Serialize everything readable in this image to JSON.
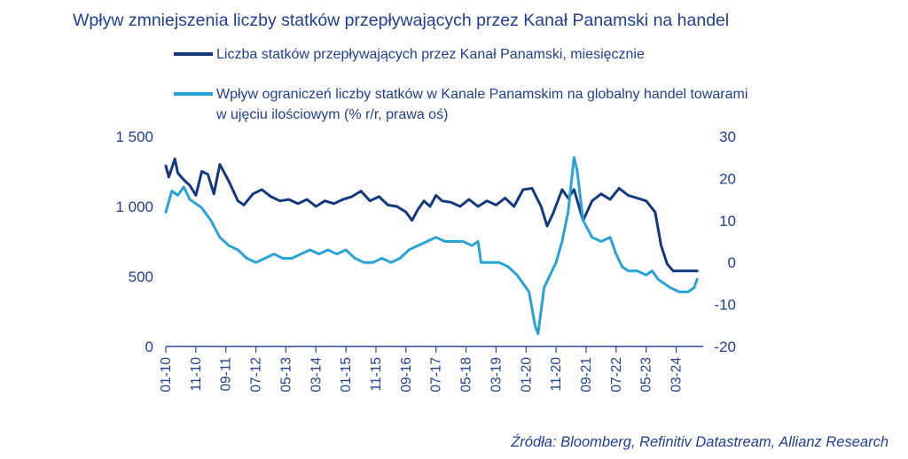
{
  "chart_data": {
    "type": "line",
    "title": "Wpływ zmniejszenia liczby statków przepływających przez Kanał Panamski na handel",
    "source": "Źródła: Bloomberg, Refinitiv Datastream, Allianz Research",
    "x_tick_labels": [
      "01-10",
      "11-10",
      "09-11",
      "07-12",
      "05-13",
      "03-14",
      "01-15",
      "11-15",
      "09-16",
      "07-17",
      "05-18",
      "03-19",
      "01-20",
      "11-20",
      "09-21",
      "07-22",
      "05-23",
      "03-24"
    ],
    "left_axis": {
      "ylim": [
        0,
        1500
      ],
      "ticks": [
        0,
        500,
        1000,
        1500
      ],
      "tick_labels": [
        "0",
        "500",
        "1 000",
        "1 500"
      ]
    },
    "right_axis": {
      "ylim": [
        -20,
        30
      ],
      "ticks": [
        -20,
        -10,
        0,
        10,
        20,
        30
      ],
      "tick_labels": [
        "-20",
        "-10",
        "0",
        "10",
        "20",
        "30"
      ]
    },
    "colors": {
      "ships": "#14387f",
      "trade": "#29a3d5",
      "axis": "#2a4a8f",
      "text": "#1f3f8f"
    },
    "series": [
      {
        "name": "Liczba statków przepływających przez Kanał Panamski, miesięcznie",
        "axis": "left",
        "color": "#14387f",
        "points": [
          [
            "2010-01",
            1290
          ],
          [
            "2010-02",
            1210
          ],
          [
            "2010-04",
            1340
          ],
          [
            "2010-05",
            1240
          ],
          [
            "2010-07",
            1190
          ],
          [
            "2010-09",
            1150
          ],
          [
            "2010-11",
            1080
          ],
          [
            "2011-01",
            1250
          ],
          [
            "2011-03",
            1230
          ],
          [
            "2011-05",
            1090
          ],
          [
            "2011-07",
            1300
          ],
          [
            "2011-10",
            1180
          ],
          [
            "2012-01",
            1040
          ],
          [
            "2012-03",
            1010
          ],
          [
            "2012-06",
            1090
          ],
          [
            "2012-09",
            1120
          ],
          [
            "2012-12",
            1070
          ],
          [
            "2013-03",
            1040
          ],
          [
            "2013-06",
            1050
          ],
          [
            "2013-09",
            1020
          ],
          [
            "2013-12",
            1050
          ],
          [
            "2014-03",
            1000
          ],
          [
            "2014-06",
            1040
          ],
          [
            "2014-09",
            1020
          ],
          [
            "2014-12",
            1050
          ],
          [
            "2015-03",
            1070
          ],
          [
            "2015-06",
            1110
          ],
          [
            "2015-09",
            1040
          ],
          [
            "2015-12",
            1070
          ],
          [
            "2016-03",
            1010
          ],
          [
            "2016-06",
            1000
          ],
          [
            "2016-09",
            960
          ],
          [
            "2016-11",
            900
          ],
          [
            "2017-01",
            980
          ],
          [
            "2017-03",
            1040
          ],
          [
            "2017-05",
            1000
          ],
          [
            "2017-07",
            1080
          ],
          [
            "2017-09",
            1040
          ],
          [
            "2017-12",
            1030
          ],
          [
            "2018-03",
            1000
          ],
          [
            "2018-06",
            1050
          ],
          [
            "2018-09",
            1000
          ],
          [
            "2018-12",
            1040
          ],
          [
            "2019-03",
            1010
          ],
          [
            "2019-06",
            1060
          ],
          [
            "2019-09",
            1000
          ],
          [
            "2019-12",
            1120
          ],
          [
            "2020-03",
            1130
          ],
          [
            "2020-06",
            1000
          ],
          [
            "2020-08",
            860
          ],
          [
            "2020-10",
            950
          ],
          [
            "2021-01",
            1120
          ],
          [
            "2021-03",
            1060
          ],
          [
            "2021-05",
            1120
          ],
          [
            "2021-08",
            900
          ],
          [
            "2021-11",
            1040
          ],
          [
            "2022-02",
            1090
          ],
          [
            "2022-05",
            1050
          ],
          [
            "2022-08",
            1130
          ],
          [
            "2022-11",
            1080
          ],
          [
            "2023-02",
            1060
          ],
          [
            "2023-05",
            1040
          ],
          [
            "2023-08",
            960
          ],
          [
            "2023-10",
            720
          ],
          [
            "2023-12",
            590
          ],
          [
            "2024-02",
            540
          ],
          [
            "2024-06",
            540
          ],
          [
            "2024-10",
            540
          ]
        ]
      },
      {
        "name": "Wpływ ograniczeń liczby statków w Kanale Panamskim na globalny handel towarami w ujęciu ilościowym (% r/r, prawa oś)",
        "axis": "right",
        "color": "#29a3d5",
        "points": [
          [
            "2010-01",
            12
          ],
          [
            "2010-03",
            17
          ],
          [
            "2010-05",
            16
          ],
          [
            "2010-07",
            18
          ],
          [
            "2010-09",
            15
          ],
          [
            "2010-11",
            14
          ],
          [
            "2011-01",
            13
          ],
          [
            "2011-04",
            10
          ],
          [
            "2011-07",
            6
          ],
          [
            "2011-10",
            4
          ],
          [
            "2012-01",
            3
          ],
          [
            "2012-04",
            1
          ],
          [
            "2012-07",
            0
          ],
          [
            "2012-10",
            1
          ],
          [
            "2013-01",
            2
          ],
          [
            "2013-04",
            1
          ],
          [
            "2013-07",
            1
          ],
          [
            "2013-10",
            2
          ],
          [
            "2014-01",
            3
          ],
          [
            "2014-04",
            2
          ],
          [
            "2014-07",
            3
          ],
          [
            "2014-10",
            2
          ],
          [
            "2015-01",
            3
          ],
          [
            "2015-04",
            1
          ],
          [
            "2015-07",
            0
          ],
          [
            "2015-10",
            0
          ],
          [
            "2016-01",
            1
          ],
          [
            "2016-04",
            0
          ],
          [
            "2016-07",
            1
          ],
          [
            "2016-10",
            3
          ],
          [
            "2017-01",
            4
          ],
          [
            "2017-04",
            5
          ],
          [
            "2017-07",
            6
          ],
          [
            "2017-10",
            5
          ],
          [
            "2018-01",
            5
          ],
          [
            "2018-04",
            5
          ],
          [
            "2018-07",
            4
          ],
          [
            "2018-09",
            5
          ],
          [
            "2018-10",
            0
          ],
          [
            "2019-01",
            0
          ],
          [
            "2019-04",
            0
          ],
          [
            "2019-07",
            -1
          ],
          [
            "2019-10",
            -3
          ],
          [
            "2019-12",
            -5
          ],
          [
            "2020-02",
            -7
          ],
          [
            "2020-04",
            -15
          ],
          [
            "2020-05",
            -17
          ],
          [
            "2020-07",
            -6
          ],
          [
            "2020-09",
            -3
          ],
          [
            "2020-11",
            0
          ],
          [
            "2021-01",
            5
          ],
          [
            "2021-03",
            12
          ],
          [
            "2021-05",
            25
          ],
          [
            "2021-06",
            22
          ],
          [
            "2021-08",
            10
          ],
          [
            "2021-11",
            6
          ],
          [
            "2022-02",
            5
          ],
          [
            "2022-05",
            6
          ],
          [
            "2022-07",
            2
          ],
          [
            "2022-09",
            -1
          ],
          [
            "2022-11",
            -2
          ],
          [
            "2023-02",
            -2
          ],
          [
            "2023-05",
            -3
          ],
          [
            "2023-07",
            -2
          ],
          [
            "2023-09",
            -4
          ],
          [
            "2023-11",
            -5
          ],
          [
            "2024-01",
            -6
          ],
          [
            "2024-04",
            -7
          ],
          [
            "2024-07",
            -7
          ],
          [
            "2024-09",
            -6
          ],
          [
            "2024-10",
            -4
          ]
        ]
      }
    ]
  }
}
